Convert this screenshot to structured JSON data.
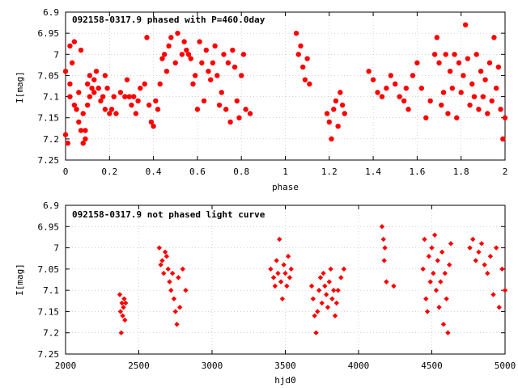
{
  "chart_data": [
    {
      "type": "scatter",
      "title": "092158-0317.9 phased with P=460.0day",
      "xlabel": "phase",
      "ylabel": "I[mag]",
      "xlim": [
        0,
        2
      ],
      "ylim": [
        6.9,
        7.25
      ],
      "y_inverted": true,
      "grid": true,
      "marker": "filled-circle",
      "color": "#ff0000",
      "x_ticks": [
        "0",
        "0.2",
        "0.4",
        "0.6",
        "0.8",
        "1",
        "1.2",
        "1.4",
        "1.6",
        "1.8",
        "2"
      ],
      "y_ticks": [
        "6.9",
        "6.95",
        "7",
        "7.05",
        "7.1",
        "7.15",
        "7.2",
        "7.25"
      ],
      "points": [
        [
          0.0,
          7.04
        ],
        [
          0.0,
          7.19
        ],
        [
          0.01,
          7.21
        ],
        [
          0.02,
          7.1
        ],
        [
          0.02,
          6.98
        ],
        [
          0.02,
          7.07
        ],
        [
          0.03,
          7.02
        ],
        [
          0.04,
          7.12
        ],
        [
          0.04,
          6.97
        ],
        [
          0.05,
          7.13
        ],
        [
          0.06,
          7.09
        ],
        [
          0.06,
          7.16
        ],
        [
          0.07,
          7.18
        ],
        [
          0.07,
          6.99
        ],
        [
          0.08,
          7.21
        ],
        [
          0.08,
          7.14
        ],
        [
          0.09,
          7.18
        ],
        [
          0.09,
          7.2
        ],
        [
          0.1,
          7.12
        ],
        [
          0.1,
          7.07
        ],
        [
          0.11,
          7.05
        ],
        [
          0.11,
          7.1
        ],
        [
          0.12,
          7.08
        ],
        [
          0.13,
          7.06
        ],
        [
          0.13,
          7.09
        ],
        [
          0.14,
          7.04
        ],
        [
          0.15,
          7.08
        ],
        [
          0.16,
          7.11
        ],
        [
          0.17,
          7.1
        ],
        [
          0.18,
          7.05
        ],
        [
          0.18,
          7.13
        ],
        [
          0.19,
          7.08
        ],
        [
          0.2,
          7.14
        ],
        [
          0.21,
          7.13
        ],
        [
          0.22,
          7.1
        ],
        [
          0.23,
          7.14
        ],
        [
          0.25,
          7.09
        ],
        [
          0.27,
          7.1
        ],
        [
          0.28,
          7.06
        ],
        [
          0.29,
          7.1
        ],
        [
          0.3,
          7.12
        ],
        [
          0.31,
          7.1
        ],
        [
          0.32,
          7.14
        ],
        [
          0.33,
          7.11
        ],
        [
          0.34,
          7.08
        ],
        [
          0.36,
          7.07
        ],
        [
          0.37,
          6.96
        ],
        [
          0.38,
          7.12
        ],
        [
          0.39,
          7.16
        ],
        [
          0.4,
          7.17
        ],
        [
          0.41,
          7.11
        ],
        [
          0.42,
          7.13
        ],
        [
          0.43,
          7.07
        ],
        [
          0.44,
          7.01
        ],
        [
          0.45,
          7.0
        ],
        [
          0.46,
          7.04
        ],
        [
          0.47,
          6.98
        ],
        [
          0.48,
          6.96
        ],
        [
          0.5,
          7.02
        ],
        [
          0.51,
          6.95
        ],
        [
          0.53,
          7.0
        ],
        [
          0.54,
          6.97
        ],
        [
          0.55,
          6.99
        ],
        [
          0.56,
          7.0
        ],
        [
          0.57,
          7.01
        ],
        [
          0.58,
          7.07
        ],
        [
          0.59,
          7.05
        ],
        [
          0.6,
          7.13
        ],
        [
          0.61,
          6.97
        ],
        [
          0.62,
          7.02
        ],
        [
          0.63,
          7.11
        ],
        [
          0.64,
          6.99
        ],
        [
          0.65,
          7.04
        ],
        [
          0.66,
          7.06
        ],
        [
          0.67,
          7.02
        ],
        [
          0.68,
          6.98
        ],
        [
          0.69,
          7.05
        ],
        [
          0.7,
          7.12
        ],
        [
          0.71,
          7.09
        ],
        [
          0.72,
          7.0
        ],
        [
          0.73,
          7.13
        ],
        [
          0.74,
          7.02
        ],
        [
          0.75,
          7.16
        ],
        [
          0.76,
          6.99
        ],
        [
          0.77,
          7.03
        ],
        [
          0.78,
          7.11
        ],
        [
          0.79,
          7.15
        ],
        [
          0.8,
          7.05
        ],
        [
          0.81,
          7.0
        ],
        [
          0.82,
          7.13
        ],
        [
          0.84,
          7.14
        ],
        [
          1.05,
          6.95
        ],
        [
          1.06,
          7.0
        ],
        [
          1.07,
          6.98
        ],
        [
          1.08,
          7.03
        ],
        [
          1.09,
          7.06
        ],
        [
          1.1,
          7.01
        ],
        [
          1.11,
          7.07
        ],
        [
          1.19,
          7.14
        ],
        [
          1.2,
          7.16
        ],
        [
          1.21,
          7.2
        ],
        [
          1.22,
          7.13
        ],
        [
          1.23,
          7.11
        ],
        [
          1.24,
          7.17
        ],
        [
          1.25,
          7.09
        ],
        [
          1.26,
          7.12
        ],
        [
          1.27,
          7.14
        ],
        [
          1.38,
          7.04
        ],
        [
          1.4,
          7.06
        ],
        [
          1.42,
          7.09
        ],
        [
          1.44,
          7.1
        ],
        [
          1.46,
          7.08
        ],
        [
          1.48,
          7.05
        ],
        [
          1.5,
          7.07
        ],
        [
          1.52,
          7.1
        ],
        [
          1.54,
          7.11
        ],
        [
          1.55,
          7.08
        ],
        [
          1.56,
          7.13
        ],
        [
          1.58,
          7.05
        ],
        [
          1.6,
          7.02
        ],
        [
          1.62,
          7.08
        ],
        [
          1.64,
          7.15
        ],
        [
          1.66,
          7.11
        ],
        [
          1.68,
          7.0
        ],
        [
          1.69,
          6.96
        ],
        [
          1.7,
          7.02
        ],
        [
          1.71,
          7.12
        ],
        [
          1.72,
          7.09
        ],
        [
          1.73,
          7.0
        ],
        [
          1.74,
          7.14
        ],
        [
          1.75,
          7.04
        ],
        [
          1.76,
          7.08
        ],
        [
          1.77,
          7.0
        ],
        [
          1.78,
          7.15
        ],
        [
          1.79,
          7.02
        ],
        [
          1.8,
          7.09
        ],
        [
          1.81,
          7.05
        ],
        [
          1.82,
          6.93
        ],
        [
          1.83,
          7.01
        ],
        [
          1.84,
          7.12
        ],
        [
          1.85,
          7.07
        ],
        [
          1.86,
          7.1
        ],
        [
          1.87,
          7.0
        ],
        [
          1.88,
          7.13
        ],
        [
          1.89,
          7.04
        ],
        [
          1.9,
          7.1
        ],
        [
          1.91,
          7.06
        ],
        [
          1.92,
          7.14
        ],
        [
          1.93,
          7.02
        ],
        [
          1.94,
          7.11
        ],
        [
          1.95,
          6.96
        ],
        [
          1.96,
          7.08
        ],
        [
          1.97,
          7.03
        ],
        [
          1.98,
          7.13
        ],
        [
          1.99,
          7.2
        ],
        [
          2.0,
          7.15
        ]
      ]
    },
    {
      "type": "scatter",
      "title": "092158-0317.9 not phased light curve",
      "xlabel": "hjd0",
      "ylabel": "I[mag]",
      "xlim": [
        2000,
        5000
      ],
      "ylim": [
        6.9,
        7.25
      ],
      "y_inverted": true,
      "grid": true,
      "marker": "filled-diamond",
      "color": "#ff0000",
      "x_ticks": [
        "2000",
        "2500",
        "3000",
        "3500",
        "4000",
        "4500",
        "5000"
      ],
      "y_ticks": [
        "6.9",
        "6.95",
        "7",
        "7.05",
        "7.1",
        "7.15",
        "7.2",
        "7.25"
      ],
      "points": [
        [
          2370,
          7.11
        ],
        [
          2375,
          7.15
        ],
        [
          2380,
          7.2
        ],
        [
          2385,
          7.13
        ],
        [
          2390,
          7.16
        ],
        [
          2395,
          7.14
        ],
        [
          2400,
          7.12
        ],
        [
          2405,
          7.17
        ],
        [
          2410,
          7.13
        ],
        [
          2640,
          7.0
        ],
        [
          2650,
          7.04
        ],
        [
          2660,
          7.03
        ],
        [
          2670,
          7.06
        ],
        [
          2680,
          7.01
        ],
        [
          2690,
          7.02
        ],
        [
          2700,
          7.05
        ],
        [
          2710,
          7.08
        ],
        [
          2720,
          7.1
        ],
        [
          2730,
          7.06
        ],
        [
          2740,
          7.12
        ],
        [
          2750,
          7.15
        ],
        [
          2760,
          7.18
        ],
        [
          2770,
          7.07
        ],
        [
          2780,
          7.14
        ],
        [
          2800,
          7.05
        ],
        [
          2820,
          7.1
        ],
        [
          3400,
          7.05
        ],
        [
          3420,
          7.07
        ],
        [
          3430,
          7.09
        ],
        [
          3440,
          7.03
        ],
        [
          3450,
          7.06
        ],
        [
          3460,
          6.98
        ],
        [
          3470,
          7.08
        ],
        [
          3480,
          7.12
        ],
        [
          3490,
          7.04
        ],
        [
          3500,
          7.06
        ],
        [
          3510,
          7.09
        ],
        [
          3520,
          7.02
        ],
        [
          3530,
          7.07
        ],
        [
          3540,
          7.05
        ],
        [
          3680,
          7.09
        ],
        [
          3690,
          7.12
        ],
        [
          3700,
          7.16
        ],
        [
          3710,
          7.2
        ],
        [
          3720,
          7.15
        ],
        [
          3730,
          7.1
        ],
        [
          3740,
          7.07
        ],
        [
          3750,
          7.13
        ],
        [
          3760,
          7.06
        ],
        [
          3770,
          7.09
        ],
        [
          3780,
          7.11
        ],
        [
          3790,
          7.14
        ],
        [
          3800,
          7.08
        ],
        [
          3810,
          7.05
        ],
        [
          3820,
          7.12
        ],
        [
          3830,
          7.1
        ],
        [
          3840,
          7.16
        ],
        [
          3850,
          7.13
        ],
        [
          3860,
          7.1
        ],
        [
          3880,
          7.07
        ],
        [
          3900,
          7.05
        ],
        [
          4160,
          6.95
        ],
        [
          4170,
          6.98
        ],
        [
          4175,
          7.03
        ],
        [
          4180,
          7.0
        ],
        [
          4190,
          7.08
        ],
        [
          4240,
          7.09
        ],
        [
          4440,
          7.05
        ],
        [
          4450,
          6.98
        ],
        [
          4460,
          7.12
        ],
        [
          4470,
          7.15
        ],
        [
          4480,
          7.02
        ],
        [
          4490,
          7.08
        ],
        [
          4500,
          7.0
        ],
        [
          4510,
          7.06
        ],
        [
          4520,
          6.97
        ],
        [
          4530,
          7.1
        ],
        [
          4540,
          7.03
        ],
        [
          4550,
          7.14
        ],
        [
          4560,
          7.08
        ],
        [
          4570,
          7.01
        ],
        [
          4580,
          7.18
        ],
        [
          4590,
          7.06
        ],
        [
          4600,
          7.12
        ],
        [
          4610,
          7.2
        ],
        [
          4620,
          7.04
        ],
        [
          4630,
          6.99
        ],
        [
          4760,
          7.0
        ],
        [
          4780,
          6.98
        ],
        [
          4800,
          7.03
        ],
        [
          4820,
          7.01
        ],
        [
          4840,
          6.99
        ],
        [
          4860,
          7.04
        ],
        [
          4880,
          7.06
        ],
        [
          4900,
          7.02
        ],
        [
          4920,
          7.11
        ],
        [
          4940,
          7.0
        ],
        [
          4960,
          7.14
        ],
        [
          4980,
          7.05
        ],
        [
          5000,
          7.1
        ]
      ]
    }
  ]
}
